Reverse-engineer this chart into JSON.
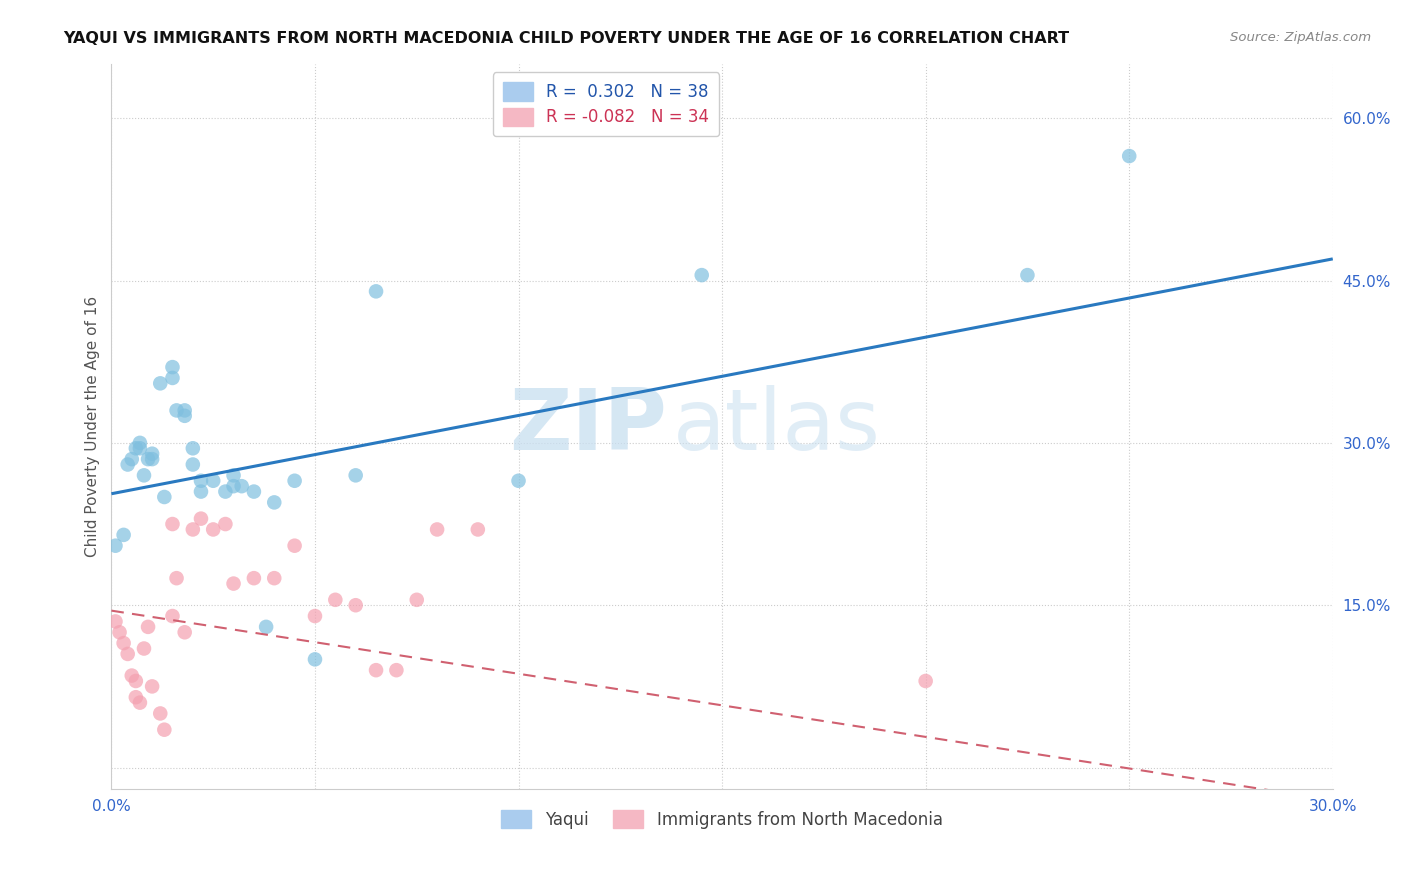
{
  "title": "YAQUI VS IMMIGRANTS FROM NORTH MACEDONIA CHILD POVERTY UNDER THE AGE OF 16 CORRELATION CHART",
  "source": "Source: ZipAtlas.com",
  "ylabel": "Child Poverty Under the Age of 16",
  "xmin": 0.0,
  "xmax": 0.3,
  "ymin": -0.02,
  "ymax": 0.65,
  "xtick_pos": [
    0.0,
    0.05,
    0.1,
    0.15,
    0.2,
    0.25,
    0.3
  ],
  "xtick_labels": [
    "0.0%",
    "",
    "",
    "",
    "",
    "",
    "30.0%"
  ],
  "ytick_pos": [
    0.0,
    0.15,
    0.3,
    0.45,
    0.6
  ],
  "ytick_labels": [
    "",
    "15.0%",
    "30.0%",
    "45.0%",
    "60.0%"
  ],
  "blue_color": "#7fbfdf",
  "pink_color": "#f4a0b0",
  "line_blue": "#2979c0",
  "line_pink": "#d06070",
  "watermark_zip": "ZIP",
  "watermark_atlas": "atlas",
  "legend_labels": [
    "Yaqui",
    "Immigrants from North Macedonia"
  ],
  "yaqui_x": [
    0.001,
    0.003,
    0.004,
    0.005,
    0.006,
    0.007,
    0.007,
    0.008,
    0.009,
    0.01,
    0.01,
    0.012,
    0.013,
    0.015,
    0.015,
    0.016,
    0.018,
    0.018,
    0.02,
    0.02,
    0.022,
    0.022,
    0.025,
    0.028,
    0.03,
    0.03,
    0.032,
    0.035,
    0.038,
    0.04,
    0.045,
    0.05,
    0.06,
    0.065,
    0.1,
    0.145,
    0.225,
    0.25
  ],
  "yaqui_y": [
    0.205,
    0.215,
    0.28,
    0.285,
    0.295,
    0.295,
    0.3,
    0.27,
    0.285,
    0.285,
    0.29,
    0.355,
    0.25,
    0.36,
    0.37,
    0.33,
    0.33,
    0.325,
    0.295,
    0.28,
    0.265,
    0.255,
    0.265,
    0.255,
    0.26,
    0.27,
    0.26,
    0.255,
    0.13,
    0.245,
    0.265,
    0.1,
    0.27,
    0.44,
    0.265,
    0.455,
    0.455,
    0.565
  ],
  "north_mac_x": [
    0.001,
    0.002,
    0.003,
    0.004,
    0.005,
    0.006,
    0.006,
    0.007,
    0.008,
    0.009,
    0.01,
    0.012,
    0.013,
    0.015,
    0.015,
    0.016,
    0.018,
    0.02,
    0.022,
    0.025,
    0.028,
    0.03,
    0.035,
    0.04,
    0.045,
    0.05,
    0.055,
    0.06,
    0.065,
    0.07,
    0.075,
    0.08,
    0.09,
    0.2
  ],
  "north_mac_y": [
    0.135,
    0.125,
    0.115,
    0.105,
    0.085,
    0.08,
    0.065,
    0.06,
    0.11,
    0.13,
    0.075,
    0.05,
    0.035,
    0.14,
    0.225,
    0.175,
    0.125,
    0.22,
    0.23,
    0.22,
    0.225,
    0.17,
    0.175,
    0.175,
    0.205,
    0.14,
    0.155,
    0.15,
    0.09,
    0.09,
    0.155,
    0.22,
    0.22,
    0.08
  ],
  "blue_line_x0": 0.0,
  "blue_line_x1": 0.3,
  "blue_line_y0": 0.253,
  "blue_line_y1": 0.47,
  "pink_line_x0": 0.0,
  "pink_line_x1": 0.3,
  "pink_line_y0": 0.145,
  "pink_line_y1": -0.03
}
